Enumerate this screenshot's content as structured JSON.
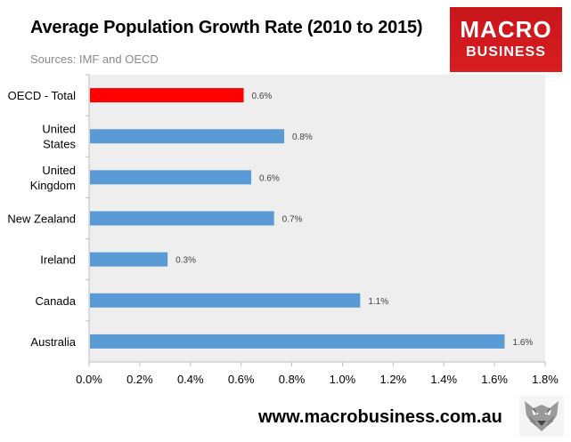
{
  "header": {
    "title": "Average Population Growth Rate (2010 to 2015)",
    "subtitle": "Sources: IMF and OECD"
  },
  "logo": {
    "line1": "MACRO",
    "line2": "BUSINESS",
    "color": "#d01a1f"
  },
  "footer": {
    "url": "www.macrobusiness.com.au",
    "emblem_icon": "fox-emblem-icon"
  },
  "colors": {
    "plot_background": "#eeeeee",
    "highlight_bar": "#ff0000",
    "default_bar": "#5b9bd5"
  },
  "chart_data": {
    "type": "bar",
    "orientation": "horizontal",
    "categories": [
      [
        "OECD - Total"
      ],
      [
        "United",
        "States"
      ],
      [
        "United",
        "Kingdom"
      ],
      [
        "New Zealand"
      ],
      [
        "Ireland"
      ],
      [
        "Canada"
      ],
      [
        "Australia"
      ]
    ],
    "values": [
      0.61,
      0.77,
      0.64,
      0.73,
      0.31,
      1.07,
      1.64
    ],
    "value_labels": [
      "0.6%",
      "0.8%",
      "0.6%",
      "0.7%",
      "0.3%",
      "1.1%",
      "1.6%"
    ],
    "highlight_index": 0,
    "xlim": [
      0,
      1.8
    ],
    "xticks": [
      0,
      0.2,
      0.4,
      0.6,
      0.8,
      1.0,
      1.2,
      1.4,
      1.6,
      1.8
    ],
    "xtick_labels": [
      "0.0%",
      "0.2%",
      "0.4%",
      "0.6%",
      "0.8%",
      "1.0%",
      "1.2%",
      "1.4%",
      "1.6%",
      "1.8%"
    ],
    "grid": false,
    "legend": "none"
  }
}
